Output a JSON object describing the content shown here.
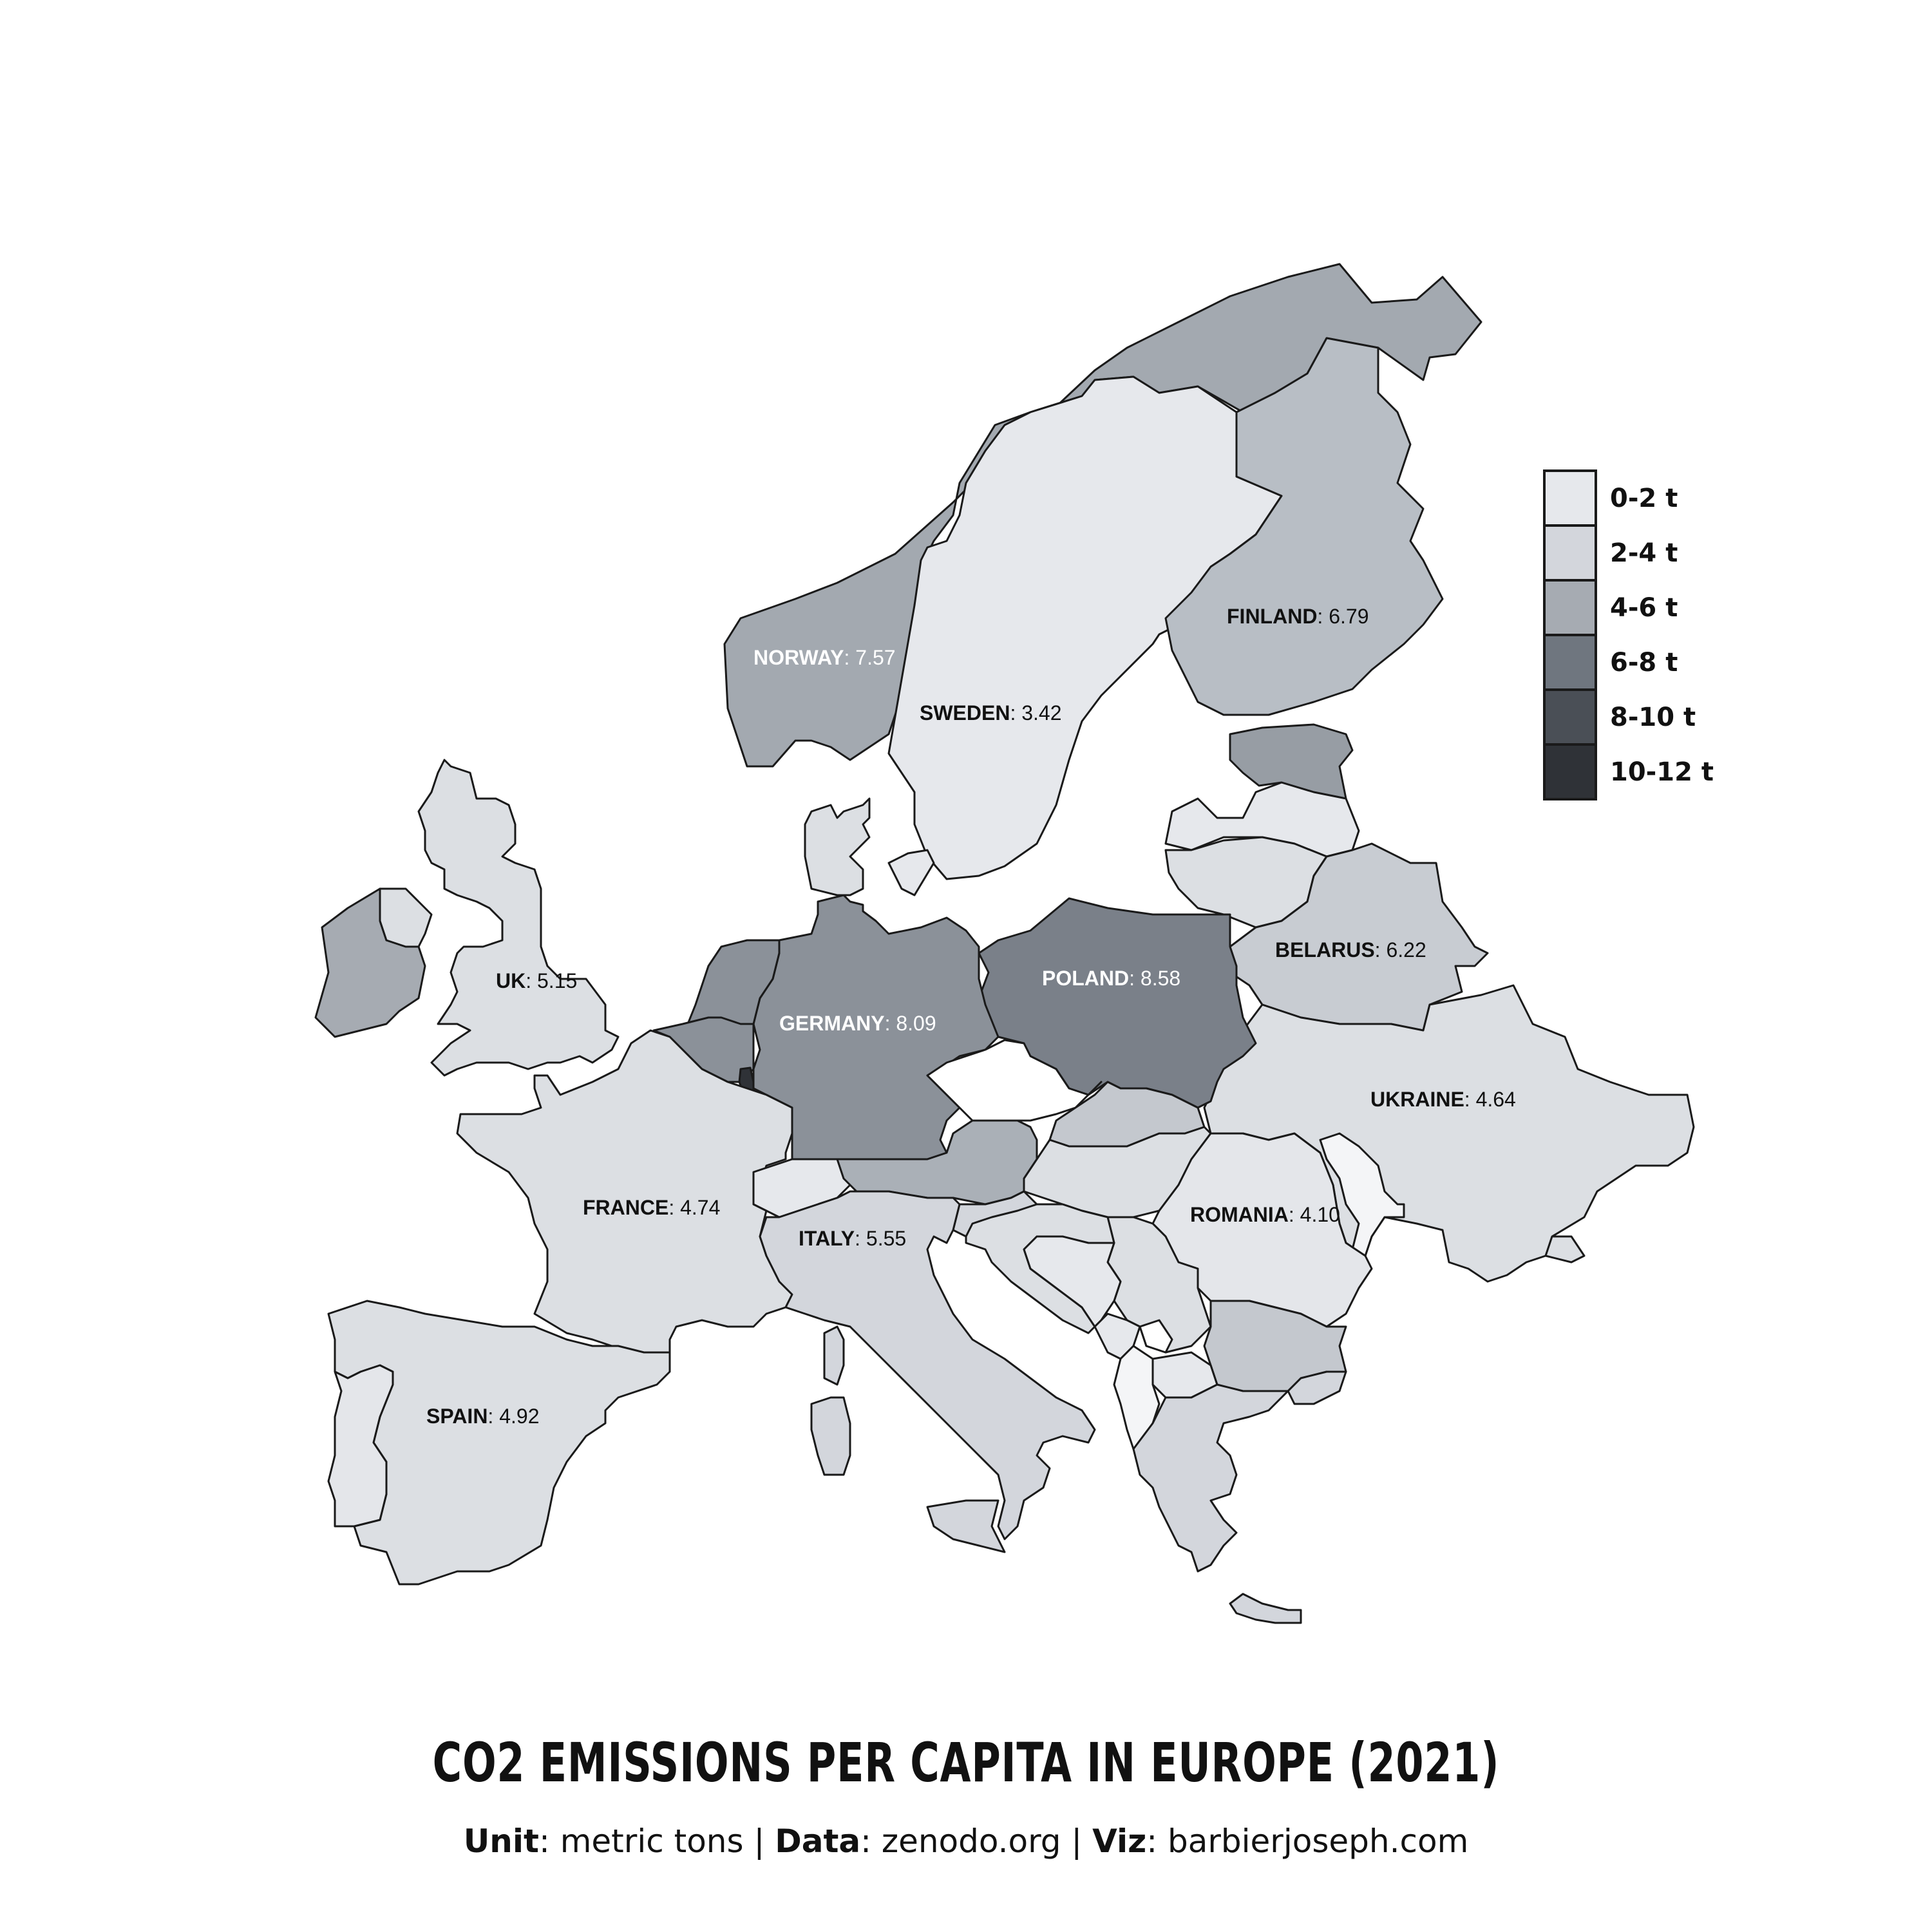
{
  "title": "CO2 EMISSIONS PER CAPITA IN EUROPE (2021)",
  "subtitle": {
    "unit_label": "Unit",
    "unit_value": "metric tons",
    "data_label": "Data",
    "data_value": "zenodo.org",
    "viz_label": "Viz",
    "viz_value": "barbierjoseph.com",
    "separator": "|"
  },
  "legend": [
    {
      "label": "0-2 t",
      "color": "#e6e8ec"
    },
    {
      "label": "2-4 t",
      "color": "#d3d6dc"
    },
    {
      "label": "4-6 t",
      "color": "#a6abb2"
    },
    {
      "label": "6-8 t",
      "color": "#6f767f"
    },
    {
      "label": "8-10 t",
      "color": "#4a4f56"
    },
    {
      "label": "10-12 t",
      "color": "#2f3237"
    }
  ],
  "labels": [
    {
      "name": "NORWAY",
      "value": "7.57",
      "light": true
    },
    {
      "name": "SWEDEN",
      "value": "3.42",
      "light": false
    },
    {
      "name": "FINLAND",
      "value": "6.79",
      "light": false
    },
    {
      "name": "UK",
      "value": "5.15",
      "light": false
    },
    {
      "name": "BELARUS",
      "value": "6.22",
      "light": false
    },
    {
      "name": "POLAND",
      "value": "8.58",
      "light": true
    },
    {
      "name": "GERMANY",
      "value": "8.09",
      "light": true
    },
    {
      "name": "UKRAINE",
      "value": "4.64",
      "light": false
    },
    {
      "name": "FRANCE",
      "value": "4.74",
      "light": false
    },
    {
      "name": "ROMANIA",
      "value": "4.10",
      "light": false
    },
    {
      "name": "ITALY",
      "value": "5.55",
      "light": false
    },
    {
      "name": "SPAIN",
      "value": "4.92",
      "light": false
    }
  ]
}
